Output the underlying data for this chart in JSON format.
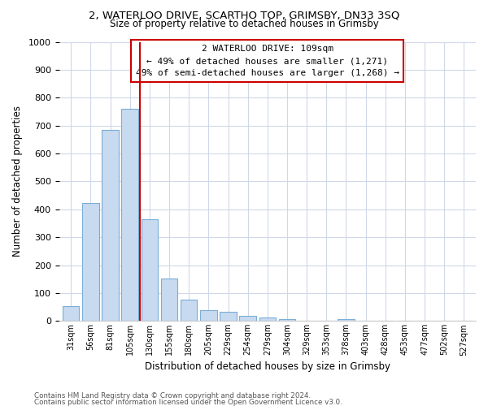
{
  "title_line1": "2, WATERLOO DRIVE, SCARTHO TOP, GRIMSBY, DN33 3SQ",
  "title_line2": "Size of property relative to detached houses in Grimsby",
  "xlabel": "Distribution of detached houses by size in Grimsby",
  "ylabel": "Number of detached properties",
  "bar_color": "#c8daf0",
  "bar_edge_color": "#7aaed6",
  "categories": [
    "31sqm",
    "56sqm",
    "81sqm",
    "105sqm",
    "130sqm",
    "155sqm",
    "180sqm",
    "205sqm",
    "229sqm",
    "254sqm",
    "279sqm",
    "304sqm",
    "329sqm",
    "353sqm",
    "378sqm",
    "403sqm",
    "428sqm",
    "453sqm",
    "477sqm",
    "502sqm",
    "527sqm"
  ],
  "values": [
    52,
    424,
    685,
    760,
    363,
    153,
    75,
    40,
    33,
    18,
    12,
    8,
    0,
    0,
    8,
    0,
    0,
    0,
    0,
    0,
    0
  ],
  "ylim": [
    0,
    1000
  ],
  "yticks": [
    0,
    100,
    200,
    300,
    400,
    500,
    600,
    700,
    800,
    900,
    1000
  ],
  "vline_x": 3.5,
  "vline_color": "#cc0000",
  "annotation_title": "2 WATERLOO DRIVE: 109sqm",
  "annotation_line1": "← 49% of detached houses are smaller (1,271)",
  "annotation_line2": "49% of semi-detached houses are larger (1,268) →",
  "annotation_box_color": "#ffffff",
  "annotation_box_edge": "#cc0000",
  "footer_line1": "Contains HM Land Registry data © Crown copyright and database right 2024.",
  "footer_line2": "Contains public sector information licensed under the Open Government Licence v3.0.",
  "background_color": "#ffffff",
  "grid_color": "#d0d8e8"
}
